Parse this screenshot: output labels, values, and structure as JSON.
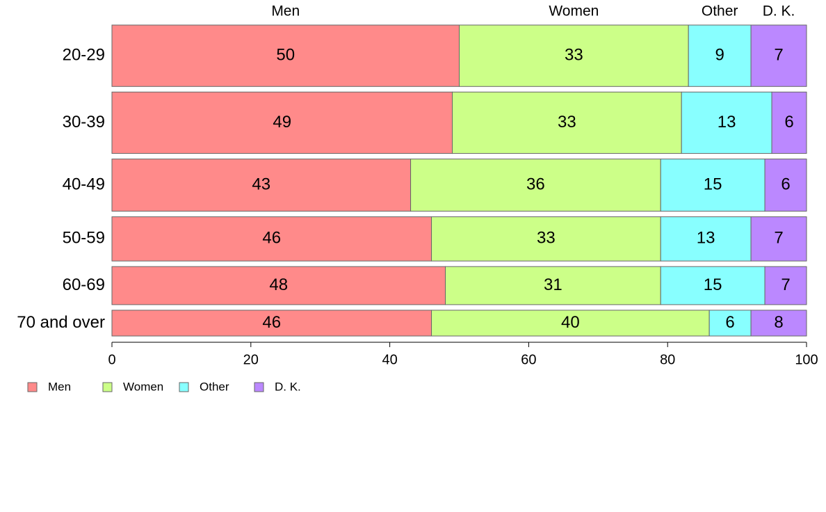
{
  "chart_data": {
    "type": "bar",
    "orientation": "horizontal",
    "stacked": true,
    "categories": [
      "20-29",
      "30-39",
      "40-49",
      "50-59",
      "60-69",
      "70 and over"
    ],
    "series": [
      {
        "name": "Men",
        "values": [
          50,
          49,
          43,
          46,
          48,
          46
        ],
        "color": "#ff8a8a"
      },
      {
        "name": "Women",
        "values": [
          33,
          33,
          36,
          33,
          31,
          40
        ],
        "color": "#ccff88"
      },
      {
        "name": "Other",
        "values": [
          9,
          13,
          15,
          13,
          15,
          6
        ],
        "color": "#88ffff"
      },
      {
        "name": "D. K.",
        "values": [
          7,
          6,
          6,
          7,
          7,
          8
        ],
        "color": "#bb88ff"
      }
    ],
    "xlim": [
      0,
      100
    ],
    "xticks": [
      "0",
      "20",
      "40",
      "60",
      "80",
      "100"
    ],
    "category_weights": [
      1.0,
      1.0,
      0.85,
      0.72,
      0.62,
      0.42
    ],
    "grid": false,
    "legend": "bottom-left",
    "top_labels": [
      "Men",
      "Women",
      "Other",
      "D. K."
    ]
  }
}
